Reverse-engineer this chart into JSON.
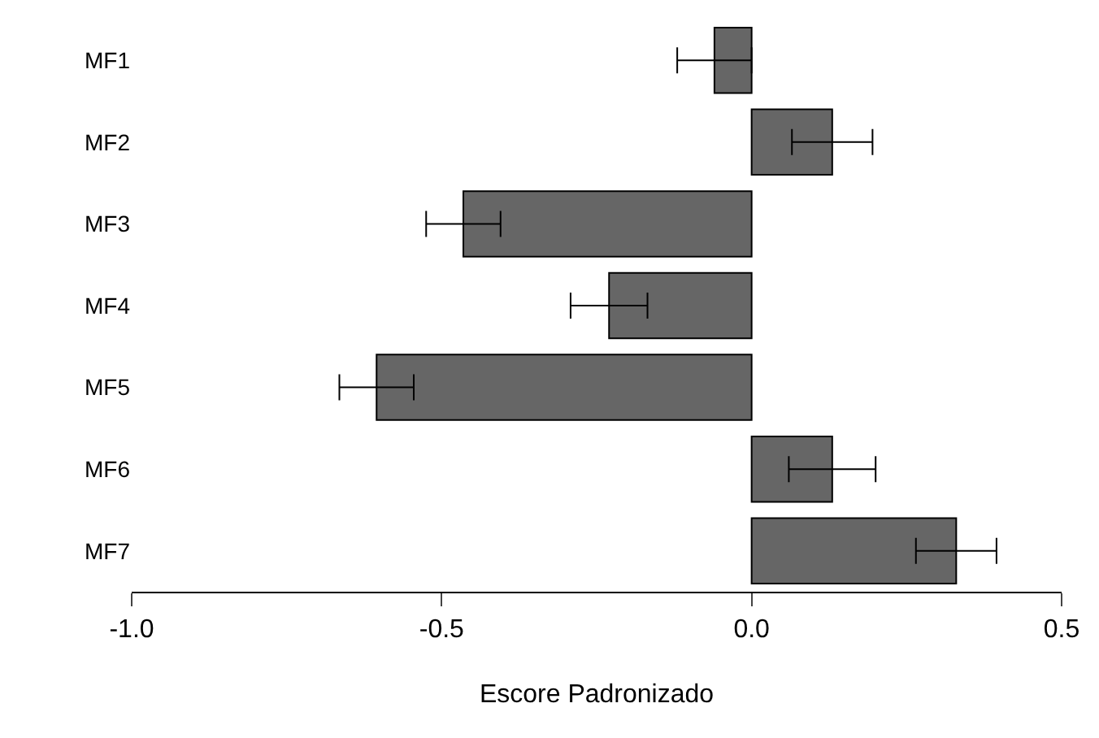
{
  "chart_data": {
    "type": "bar",
    "orientation": "horizontal",
    "xlabel": "Escore Padronizado",
    "categories": [
      "MF1",
      "MF2",
      "MF3",
      "MF4",
      "MF5",
      "MF6",
      "MF7"
    ],
    "values": [
      -0.06,
      0.13,
      -0.465,
      -0.23,
      -0.605,
      0.13,
      0.33
    ],
    "errors": [
      0.06,
      0.065,
      0.06,
      0.062,
      0.06,
      0.07,
      0.065
    ],
    "color": "#666666",
    "xlim": [
      -1.0,
      0.5
    ],
    "xticks": [
      {
        "value": -1.0,
        "label": "-1.0"
      },
      {
        "value": -0.5,
        "label": "-0.5"
      },
      {
        "value": 0.0,
        "label": "0.0"
      },
      {
        "value": 0.5,
        "label": "0.5"
      }
    ],
    "legend": false
  }
}
